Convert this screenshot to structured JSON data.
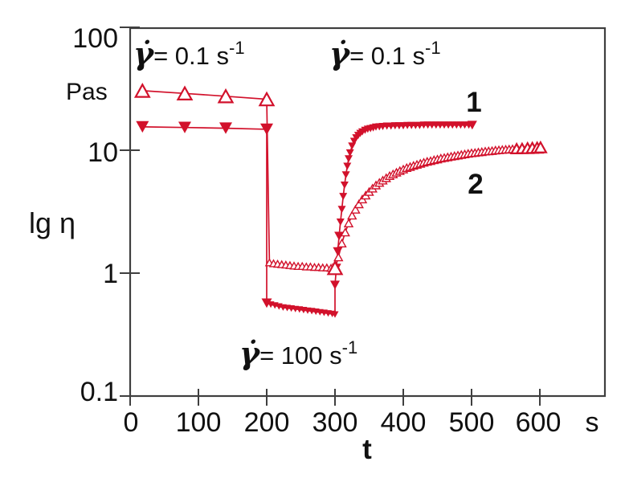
{
  "chart_data": {
    "type": "line",
    "title": "",
    "xlabel": "t",
    "x_unit": "s",
    "ylabel": "lg η",
    "y_unit": "Pas",
    "x_ticks": [
      "0",
      "100",
      "200",
      "300",
      "400",
      "500",
      "600"
    ],
    "x_tick_values": [
      0,
      100,
      200,
      300,
      400,
      500,
      600
    ],
    "y_ticks": [
      "100",
      "10",
      "1",
      "0.1"
    ],
    "y_tick_values": [
      100,
      10,
      1,
      0.1
    ],
    "x_range_s": [
      0,
      695
    ],
    "y_range_pas": [
      0.1,
      100
    ],
    "y_scale": "log",
    "grid": false,
    "axis_color": "#3f3f3f",
    "series_color": "#d2112b",
    "annotations": [
      {
        "id": "shear-rate-low-left",
        "gamma": "γ̇",
        "text": " = 0.1 s",
        "sup": "-1"
      },
      {
        "id": "shear-rate-low-right",
        "gamma": "γ̇",
        "text": " = 0.1 s",
        "sup": "-1"
      },
      {
        "id": "shear-rate-high",
        "gamma": "γ̇",
        "text": " = 100 s",
        "sup": "-1"
      }
    ],
    "series": [
      {
        "name": "1",
        "marker": "triangle-down",
        "style": "filled",
        "color": "#d2112b",
        "segments": [
          {
            "size": 16,
            "points": [
              [
                18,
                15.5
              ],
              [
                80,
                15.3
              ],
              [
                140,
                15.1
              ],
              [
                200,
                14.8
              ]
            ]
          },
          {
            "size": 9,
            "points": [
              [
                200,
                0.57,
                13
              ],
              [
                206,
                0.555
              ],
              [
                212,
                0.545
              ],
              [
                218,
                0.535
              ],
              [
                224,
                0.525
              ],
              [
                230,
                0.52
              ],
              [
                236,
                0.515
              ],
              [
                242,
                0.51
              ],
              [
                248,
                0.505
              ],
              [
                254,
                0.5
              ],
              [
                260,
                0.495
              ],
              [
                266,
                0.49
              ],
              [
                272,
                0.485
              ],
              [
                278,
                0.48
              ],
              [
                284,
                0.475
              ],
              [
                290,
                0.47
              ],
              [
                296,
                0.465
              ],
              [
                300,
                0.46
              ]
            ]
          },
          {
            "size": 10,
            "points": [
              [
                300,
                0.8,
                12
              ],
              [
                302,
                1.1,
                12
              ],
              [
                304,
                1.5,
                12
              ],
              [
                306,
                2.0,
                12
              ],
              [
                308,
                2.6
              ],
              [
                310,
                3.3
              ],
              [
                312,
                4.2
              ],
              [
                314,
                5.2
              ],
              [
                316,
                6.3
              ],
              [
                318,
                7.4
              ],
              [
                320,
                8.5
              ],
              [
                322,
                9.5
              ],
              [
                325,
                10.8
              ],
              [
                328,
                11.8
              ],
              [
                331,
                12.6
              ],
              [
                334,
                13.2
              ],
              [
                337,
                13.7
              ],
              [
                340,
                14.1
              ],
              [
                344,
                14.5
              ],
              [
                348,
                14.8
              ],
              [
                352,
                15.0
              ],
              [
                356,
                15.2
              ],
              [
                360,
                15.4
              ],
              [
                365,
                15.5
              ],
              [
                370,
                15.6
              ],
              [
                376,
                15.7
              ],
              [
                382,
                15.7
              ],
              [
                388,
                15.8
              ],
              [
                394,
                15.8
              ],
              [
                400,
                15.8
              ],
              [
                406,
                15.9
              ],
              [
                412,
                15.9
              ],
              [
                418,
                15.9
              ],
              [
                424,
                15.9
              ],
              [
                430,
                16.0
              ],
              [
                436,
                16.0
              ],
              [
                442,
                16.0
              ],
              [
                448,
                16.0
              ],
              [
                454,
                16.0
              ],
              [
                460,
                16.0
              ],
              [
                466,
                16.0
              ],
              [
                472,
                16.0
              ],
              [
                478,
                16.0
              ],
              [
                484,
                16.0
              ],
              [
                490,
                16.0
              ],
              [
                496,
                16.0
              ],
              [
                501,
                16.0,
                12
              ]
            ]
          }
        ]
      },
      {
        "name": "2",
        "marker": "triangle-up",
        "style": "open",
        "color": "#d2112b",
        "segments": [
          {
            "size": 17,
            "points": [
              [
                18,
                30.5
              ],
              [
                80,
                29.0
              ],
              [
                140,
                27.5
              ],
              [
                200,
                26.0
              ]
            ]
          },
          {
            "size": 9,
            "points": [
              [
                204,
                1.22
              ],
              [
                210,
                1.2
              ],
              [
                216,
                1.19
              ],
              [
                222,
                1.18
              ],
              [
                228,
                1.17
              ],
              [
                234,
                1.16
              ],
              [
                240,
                1.15
              ],
              [
                246,
                1.14
              ],
              [
                252,
                1.14
              ],
              [
                258,
                1.13
              ],
              [
                264,
                1.13
              ],
              [
                270,
                1.12
              ],
              [
                276,
                1.12
              ],
              [
                282,
                1.11
              ],
              [
                288,
                1.11
              ],
              [
                294,
                1.1
              ],
              [
                300,
                1.1,
                17
              ]
            ]
          },
          {
            "size": 10,
            "points": [
              [
                305,
                1.35
              ],
              [
                310,
                1.75
              ],
              [
                315,
                2.15
              ],
              [
                320,
                2.55
              ],
              [
                325,
                2.95
              ],
              [
                330,
                3.3
              ],
              [
                335,
                3.65
              ],
              [
                340,
                4.0
              ],
              [
                345,
                4.3
              ],
              [
                350,
                4.6
              ],
              [
                355,
                4.9
              ],
              [
                360,
                5.2
              ],
              [
                365,
                5.45
              ],
              [
                370,
                5.7
              ],
              [
                375,
                5.95
              ],
              [
                380,
                6.2
              ],
              [
                385,
                6.4
              ],
              [
                390,
                6.6
              ],
              [
                395,
                6.8
              ],
              [
                400,
                7.0
              ],
              [
                405,
                7.2
              ],
              [
                410,
                7.35
              ],
              [
                415,
                7.5
              ],
              [
                420,
                7.65
              ],
              [
                425,
                7.8
              ],
              [
                430,
                7.95
              ],
              [
                435,
                8.1
              ],
              [
                440,
                8.2
              ],
              [
                445,
                8.35
              ],
              [
                450,
                8.45
              ],
              [
                455,
                8.6
              ],
              [
                460,
                8.7
              ],
              [
                465,
                8.8
              ],
              [
                470,
                8.9
              ],
              [
                475,
                9.0
              ],
              [
                480,
                9.1
              ],
              [
                485,
                9.2
              ],
              [
                490,
                9.3
              ],
              [
                495,
                9.4
              ],
              [
                500,
                9.5
              ],
              [
                505,
                9.55
              ],
              [
                510,
                9.65
              ],
              [
                515,
                9.7
              ],
              [
                520,
                9.8
              ],
              [
                525,
                9.85
              ],
              [
                530,
                9.9
              ],
              [
                535,
                10.0
              ],
              [
                540,
                10.05
              ],
              [
                545,
                10.1
              ],
              [
                550,
                10.15
              ],
              [
                555,
                10.2
              ],
              [
                560,
                10.25
              ],
              [
                566,
                10.3,
                13
              ],
              [
                574,
                10.35,
                13
              ],
              [
                582,
                10.4,
                14
              ],
              [
                589,
                10.45,
                14
              ],
              [
                596,
                10.5,
                14
              ],
              [
                601,
                10.55,
                14
              ]
            ]
          }
        ]
      }
    ]
  }
}
